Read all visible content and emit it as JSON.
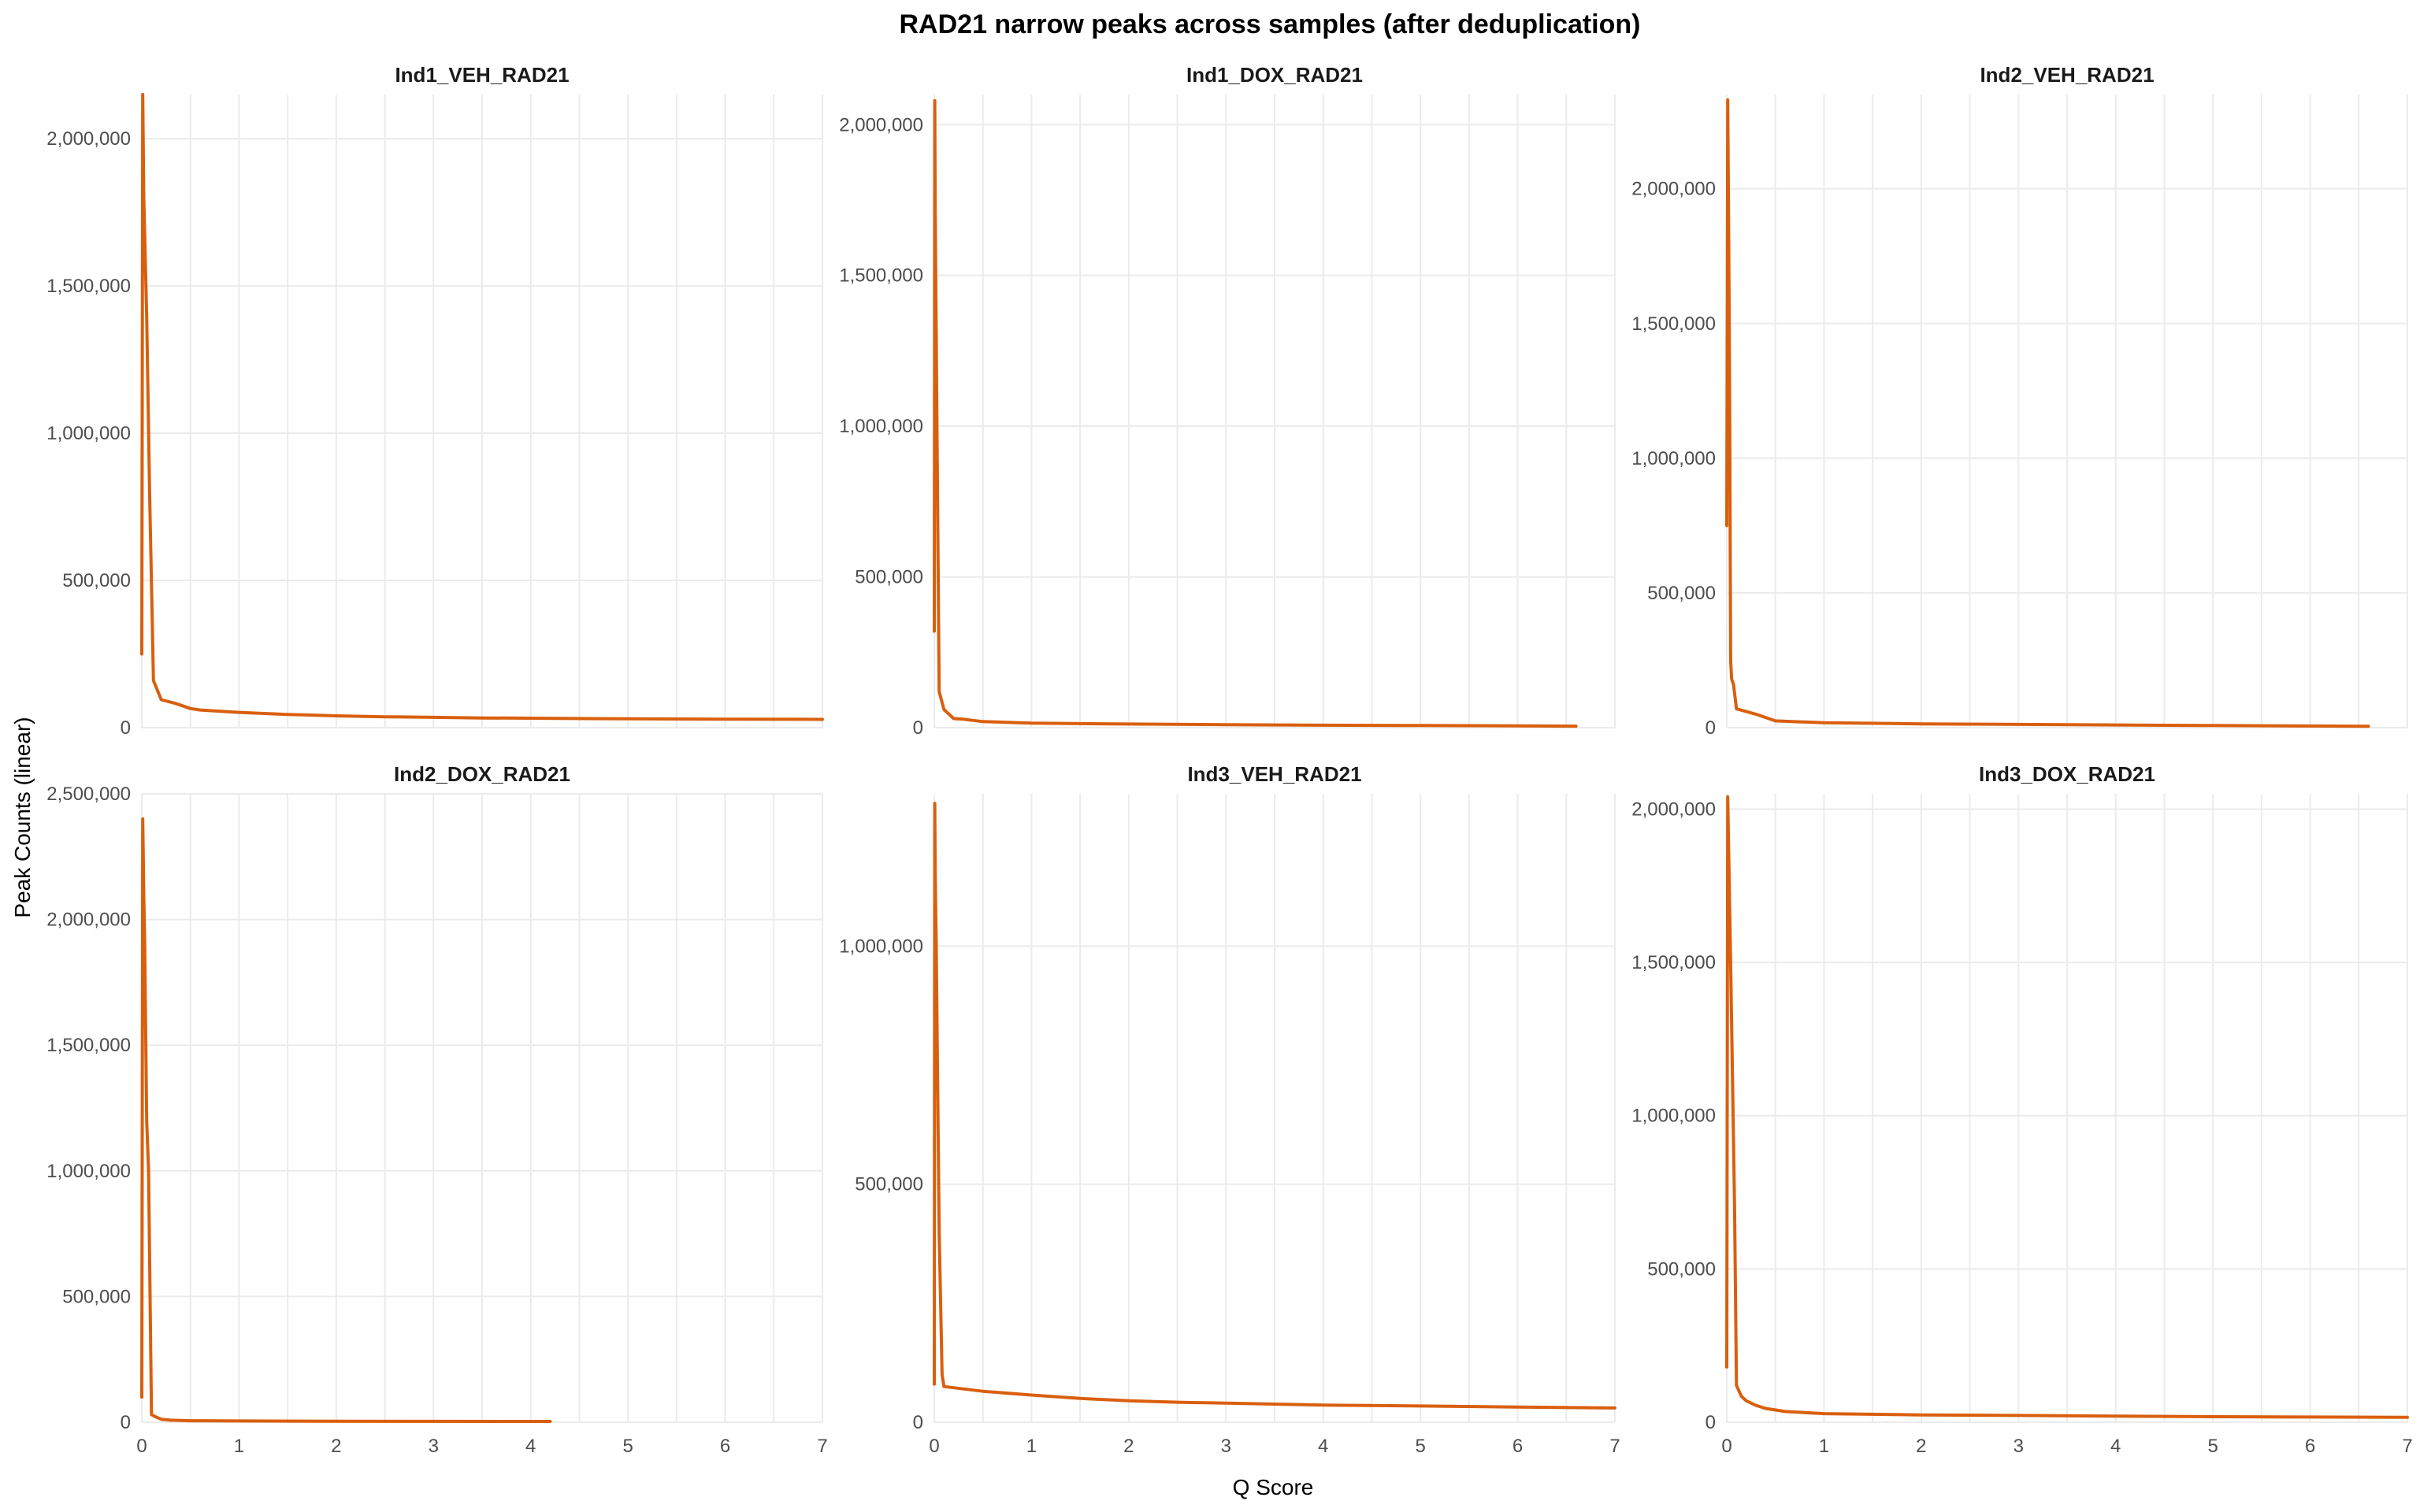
{
  "chart_data": {
    "type": "line",
    "title": "RAD21 narrow peaks across samples (after deduplication)",
    "xlabel": "Q Score",
    "ylabel": "Peak Counts (linear)",
    "line_color": "#d95f0e",
    "grid": true,
    "xlim": [
      0,
      7
    ],
    "x_ticks": [
      0,
      1,
      2,
      3,
      4,
      5,
      6,
      7
    ],
    "panels": [
      {
        "name": "Ind1_VEH_RAD21",
        "ylim": [
          0,
          2150000
        ],
        "y_ticks": [
          0,
          500000,
          1000000,
          1500000,
          2000000
        ],
        "y_tick_labels": [
          "0",
          "500,000",
          "1,000,000",
          "1,500,000",
          "2,000,000"
        ],
        "x": [
          0.0,
          0.01,
          0.02,
          0.05,
          0.08,
          0.12,
          0.2,
          0.35,
          0.5,
          0.6,
          1.0,
          1.5,
          2.0,
          2.5,
          3.0,
          3.5,
          4.0,
          5.0,
          6.0,
          7.0
        ],
        "y": [
          250000,
          2150000,
          1800000,
          1400000,
          800000,
          160000,
          95000,
          82000,
          65000,
          60000,
          52000,
          45000,
          40000,
          37000,
          35000,
          33000,
          32000,
          30000,
          29000,
          28000
        ]
      },
      {
        "name": "Ind1_DOX_RAD21",
        "ylim": [
          0,
          2100000
        ],
        "y_ticks": [
          0,
          500000,
          1000000,
          1500000,
          2000000
        ],
        "y_tick_labels": [
          "0",
          "500,000",
          "1,000,000",
          "1,500,000",
          "2,000,000"
        ],
        "x": [
          0.0,
          0.005,
          0.01,
          0.02,
          0.03,
          0.05,
          0.1,
          0.2,
          0.3,
          0.5,
          1.0,
          2.0,
          3.0,
          4.0,
          5.0,
          6.0,
          6.6
        ],
        "y": [
          320000,
          2080000,
          1700000,
          1300000,
          900000,
          120000,
          60000,
          30000,
          28000,
          20000,
          15000,
          12000,
          10000,
          8000,
          7000,
          6000,
          5000
        ]
      },
      {
        "name": "Ind2_VEH_RAD21",
        "ylim": [
          0,
          2350000
        ],
        "y_ticks": [
          0,
          500000,
          1000000,
          1500000,
          2000000
        ],
        "y_tick_labels": [
          "0",
          "500,000",
          "1,000,000",
          "1,500,000",
          "2,000,000"
        ],
        "x": [
          0.0,
          0.01,
          0.02,
          0.03,
          0.04,
          0.05,
          0.07,
          0.1,
          0.3,
          0.5,
          1.0,
          2.0,
          3.0,
          4.0,
          5.0,
          6.0,
          6.6
        ],
        "y": [
          750000,
          2330000,
          1800000,
          1200000,
          250000,
          180000,
          160000,
          70000,
          50000,
          25000,
          18000,
          14000,
          12000,
          10000,
          8000,
          6000,
          5000
        ]
      },
      {
        "name": "Ind2_DOX_RAD21",
        "ylim": [
          0,
          2500000
        ],
        "y_ticks": [
          0,
          500000,
          1000000,
          1500000,
          2000000,
          2500000
        ],
        "y_tick_labels": [
          "0",
          "500,000",
          "1,000,000",
          "1,500,000",
          "2,000,000",
          "2,500,000"
        ],
        "x": [
          0.0,
          0.01,
          0.02,
          0.03,
          0.05,
          0.07,
          0.1,
          0.15,
          0.2,
          0.3,
          0.5,
          1.0,
          2.0,
          3.0,
          4.0,
          4.2
        ],
        "y": [
          100000,
          2400000,
          2100000,
          1900000,
          1200000,
          1000000,
          30000,
          20000,
          12000,
          8000,
          6000,
          5000,
          4000,
          3500,
          3000,
          3000
        ]
      },
      {
        "name": "Ind3_VEH_RAD21",
        "ylim": [
          0,
          1320000
        ],
        "y_ticks": [
          0,
          500000,
          1000000
        ],
        "y_tick_labels": [
          "0",
          "500,000",
          "1,000,000"
        ],
        "x": [
          0.0,
          0.005,
          0.01,
          0.02,
          0.03,
          0.05,
          0.08,
          0.1,
          0.3,
          0.5,
          1.0,
          1.5,
          2.0,
          2.5,
          3.0,
          3.5,
          4.0,
          5.0,
          6.0,
          7.0
        ],
        "y": [
          80000,
          1300000,
          1150000,
          1000000,
          800000,
          400000,
          100000,
          75000,
          70000,
          65000,
          57000,
          50000,
          45000,
          42000,
          40000,
          38000,
          36000,
          34000,
          32000,
          30000
        ]
      },
      {
        "name": "Ind3_DOX_RAD21",
        "ylim": [
          0,
          2050000
        ],
        "y_ticks": [
          0,
          500000,
          1000000,
          1500000,
          2000000
        ],
        "y_tick_labels": [
          "0",
          "500,000",
          "1,000,000",
          "1,500,000",
          "2,000,000"
        ],
        "x": [
          0.0,
          0.01,
          0.02,
          0.04,
          0.06,
          0.08,
          0.1,
          0.15,
          0.2,
          0.3,
          0.4,
          0.6,
          1.0,
          2.0,
          3.0,
          4.0,
          5.0,
          6.0,
          7.0
        ],
        "y": [
          180000,
          2040000,
          1850000,
          1500000,
          1100000,
          700000,
          120000,
          85000,
          70000,
          55000,
          45000,
          35000,
          28000,
          24000,
          22000,
          20000,
          18000,
          17000,
          16000
        ]
      }
    ]
  }
}
